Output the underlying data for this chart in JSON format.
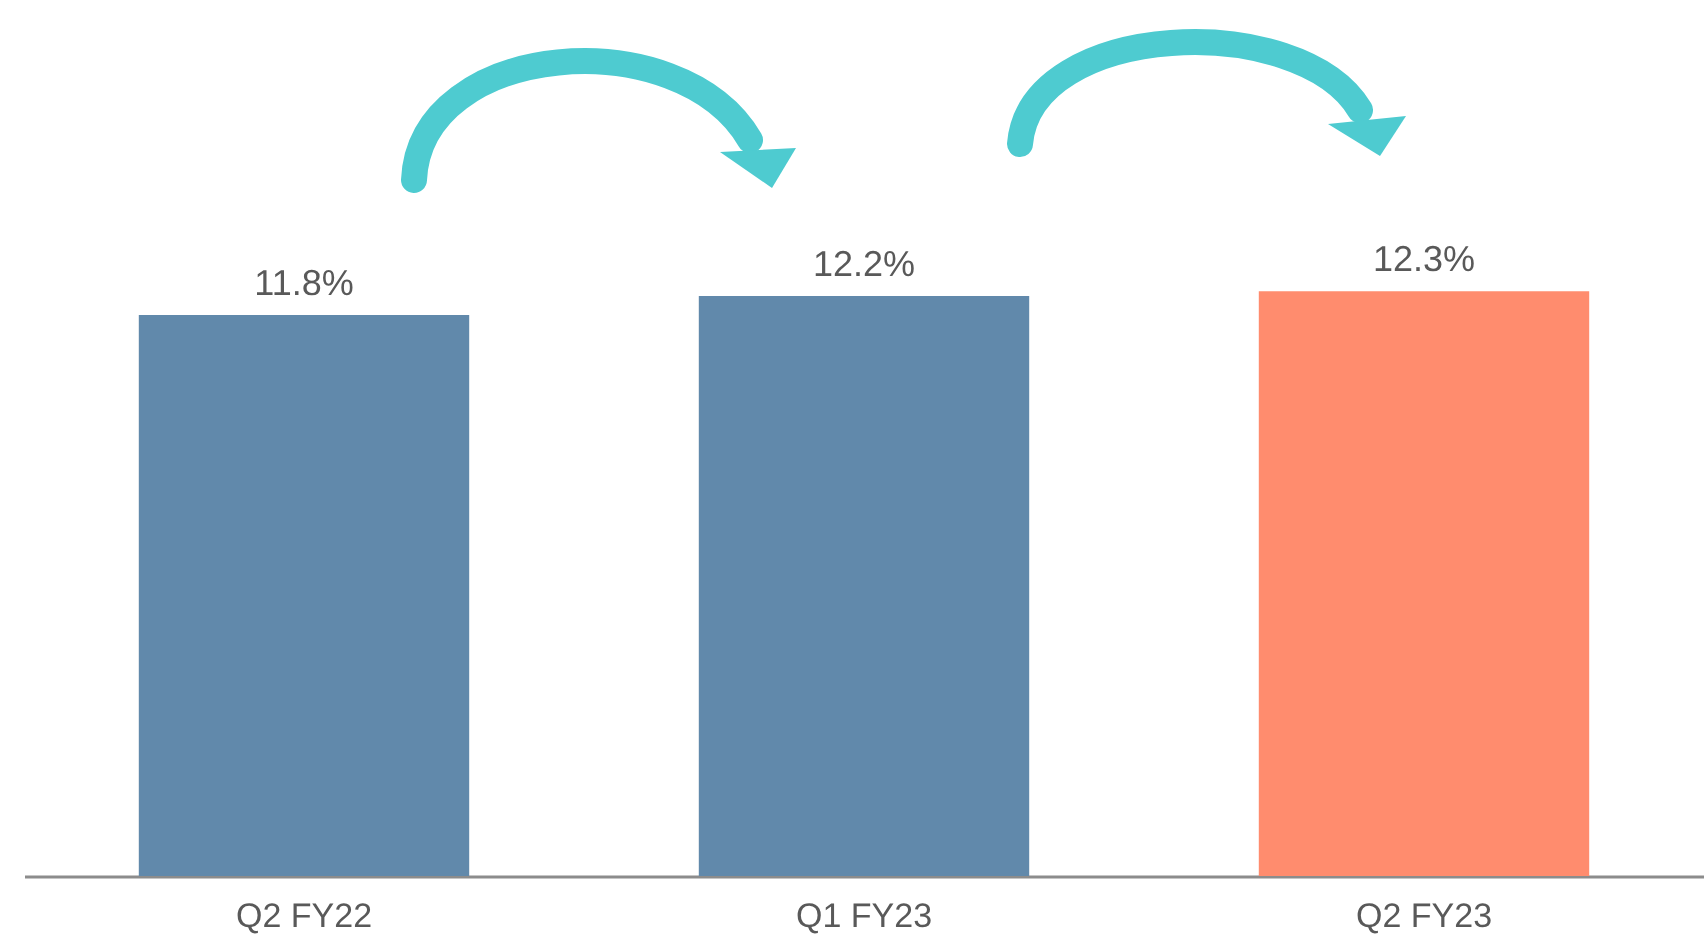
{
  "chart_data": {
    "type": "bar",
    "tick_labels": "x",
    "categories": [
      "Q2 FY22",
      "Q1 FY23",
      "Q2 FY23"
    ],
    "values": [
      11.8,
      12.2,
      12.3
    ],
    "colors": [
      "#6189ab",
      "#6189ab",
      "#ff8c6e"
    ],
    "value_labels": [
      "11.8%",
      "12.2%",
      "12.3%"
    ],
    "grid": false
  }
}
